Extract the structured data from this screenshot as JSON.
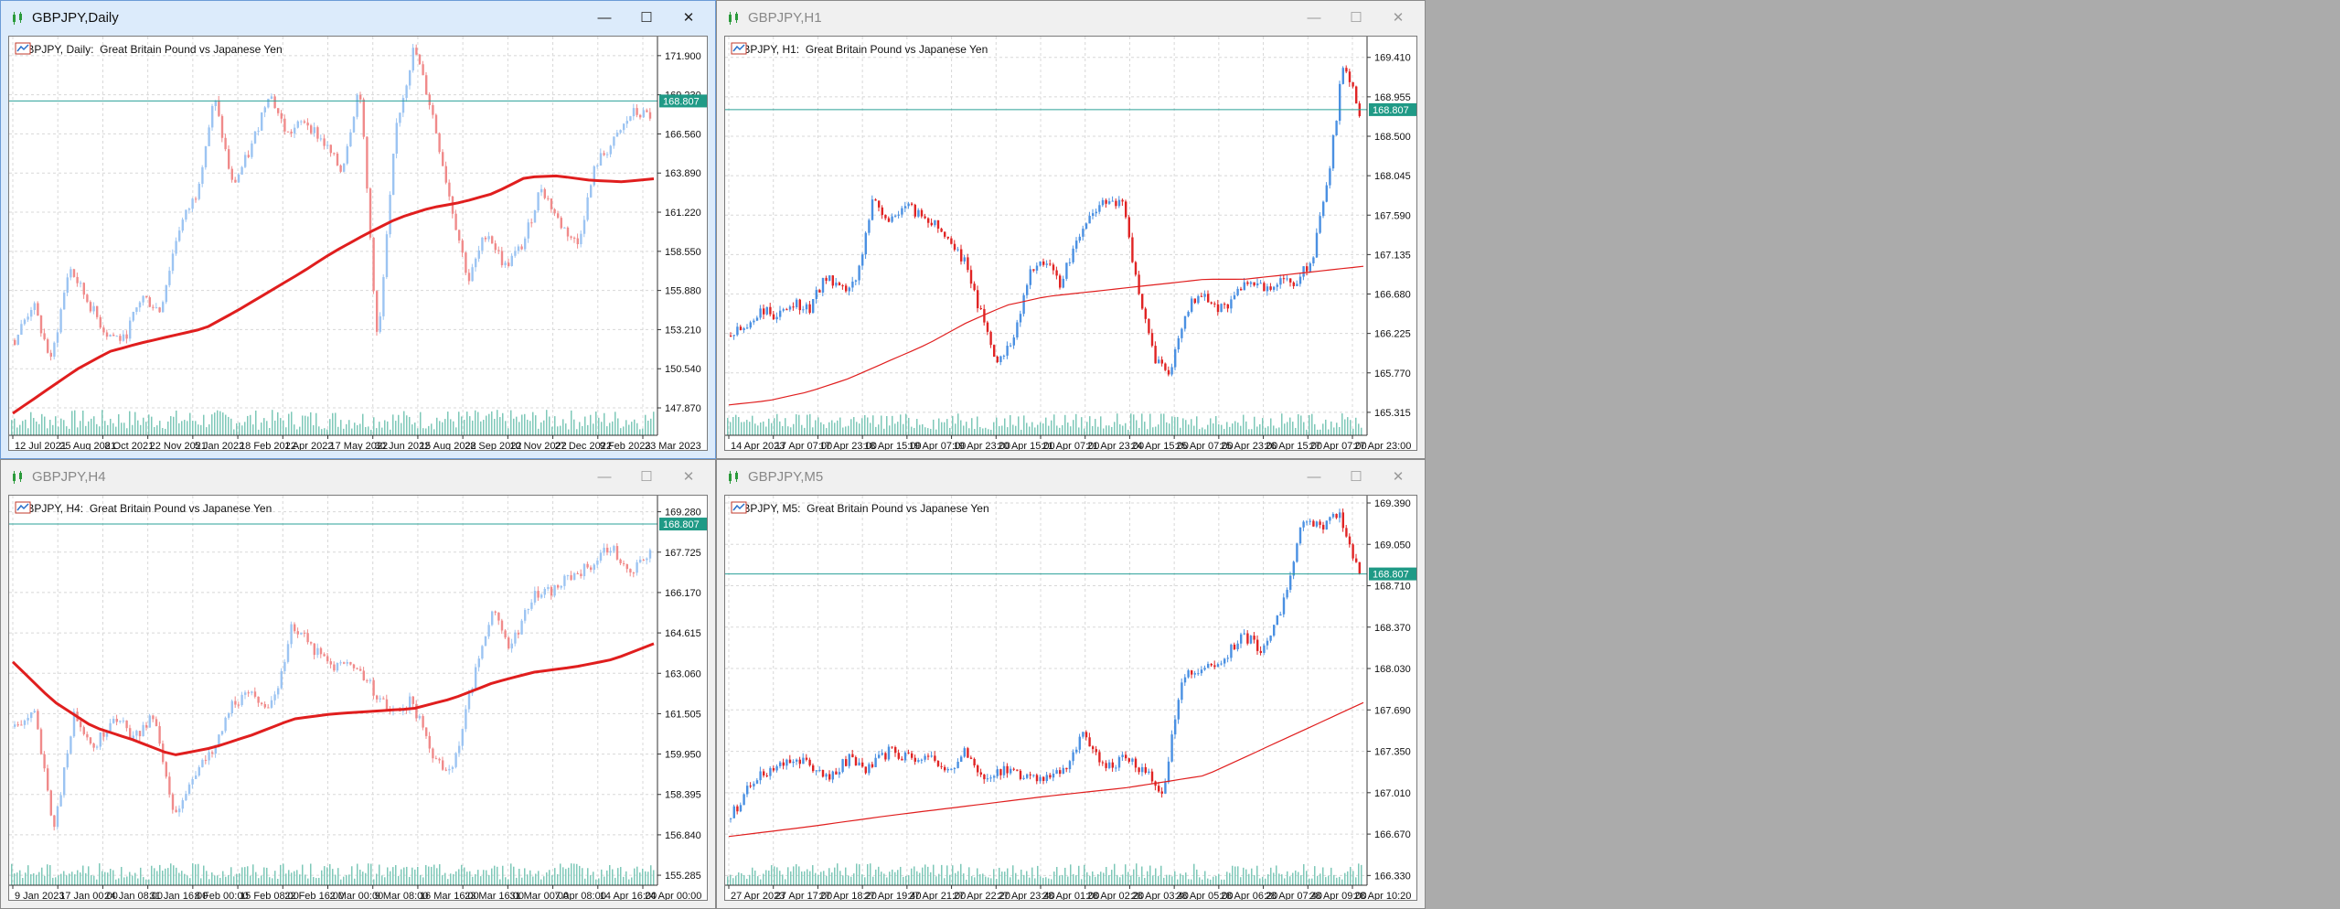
{
  "windows": [
    {
      "title": "GBPJPY,Daily",
      "active": true,
      "chart_label": "GBPJPY, Daily:  Great Britain Pound vs Japanese Yen",
      "price_badge": "168.807",
      "y_ticks": [
        "171.900",
        "169.230",
        "166.560",
        "163.890",
        "161.220",
        "158.550",
        "155.880",
        "153.210",
        "150.540",
        "147.870"
      ],
      "x_ticks": [
        "12 Jul 2021",
        "25 Aug 2021",
        "8 Oct 2021",
        "22 Nov 2021",
        "5 Jan 2022",
        "18 Feb 2022",
        "1 Apr 2022",
        "17 May 2022",
        "30 Jun 2022",
        "15 Aug 2022",
        "28 Sep 2022",
        "10 Nov 2022",
        "27 Dec 2022",
        "9 Feb 2023",
        "23 Mar 2023"
      ]
    },
    {
      "title": "GBPJPY,H1",
      "active": false,
      "chart_label": "GBPJPY, H1:  Great Britain Pound vs Japanese Yen",
      "price_badge": "168.807",
      "y_ticks": [
        "169.410",
        "168.955",
        "168.500",
        "168.045",
        "167.590",
        "167.135",
        "166.680",
        "166.225",
        "165.770",
        "165.315"
      ],
      "x_ticks": [
        "14 Apr 2023",
        "17 Apr 07:00",
        "17 Apr 23:00",
        "18 Apr 15:00",
        "19 Apr 07:00",
        "19 Apr 23:00",
        "20 Apr 15:00",
        "21 Apr 07:00",
        "21 Apr 23:00",
        "24 Apr 15:00",
        "25 Apr 07:00",
        "25 Apr 23:00",
        "26 Apr 15:00",
        "27 Apr 07:00",
        "27 Apr 23:00"
      ]
    },
    {
      "title": "GBPJPY,H4",
      "active": false,
      "chart_label": "GBPJPY, H4:  Great Britain Pound vs Japanese Yen",
      "price_badge": "168.807",
      "y_ticks": [
        "169.280",
        "167.725",
        "166.170",
        "164.615",
        "163.060",
        "161.505",
        "159.950",
        "158.395",
        "156.840",
        "155.285"
      ],
      "x_ticks": [
        "9 Jan 2023",
        "17 Jan 00:00",
        "24 Jan 08:00",
        "31 Jan 16:00",
        "8 Feb 00:00",
        "15 Feb 08:00",
        "22 Feb 16:00",
        "2 Mar 00:00",
        "9 Mar 08:00",
        "16 Mar 16:00",
        "23 Mar 16:00",
        "31 Mar 00:00",
        "7 Apr 08:00",
        "14 Apr 16:00",
        "24 Apr 00:00"
      ]
    },
    {
      "title": "GBPJPY,M5",
      "active": false,
      "chart_label": "GBPJPY, M5:  Great Britain Pound vs Japanese Yen",
      "price_badge": "168.807",
      "y_ticks": [
        "169.390",
        "169.050",
        "168.710",
        "168.370",
        "168.030",
        "167.690",
        "167.350",
        "167.010",
        "166.670",
        "166.330"
      ],
      "x_ticks": [
        "27 Apr 2023",
        "27 Apr 17:00",
        "27 Apr 18:20",
        "27 Apr 19:40",
        "27 Apr 21:00",
        "27 Apr 22:20",
        "27 Apr 23:40",
        "28 Apr 01:00",
        "28 Apr 02:20",
        "28 Apr 03:40",
        "28 Apr 05:00",
        "28 Apr 06:20",
        "28 Apr 07:40",
        "28 Apr 09:00",
        "28 Apr 10:20"
      ]
    }
  ],
  "window_buttons": {
    "minimize": "—",
    "maximize": "☐",
    "close": "✕"
  },
  "colors": {
    "bull": "#4a90e2",
    "bull_light": "#9cc4f2",
    "bear": "#e02424",
    "bear_light": "#f08a8a",
    "ma": "#e01e1e",
    "volume": "#7ec8b8",
    "price_line": "#2aa198",
    "badge": "#1f9a86",
    "grid": "#d8d8d8"
  },
  "chart_data": [
    {
      "type": "line",
      "title": "GBPJPY, Daily:  Great Britain Pound vs Japanese Yen",
      "series": [
        {
          "values": [
            152.5,
            155.0,
            151.0,
            157.5,
            155.2,
            153.0,
            152.5,
            155.5,
            154.5,
            160.0,
            162.5,
            169.0,
            163.0,
            165.5,
            169.5,
            166.5,
            167.5,
            166.0,
            164.0,
            170.0,
            152.0,
            167.0,
            172.5,
            168.0,
            162.0,
            156.5,
            160.0,
            157.5,
            159.0,
            163.0,
            160.5,
            159.0,
            164.5,
            166.0,
            168.0,
            167.8
          ]
        },
        {
          "name": "MA",
          "values": [
            147.5,
            149.0,
            150.5,
            151.7,
            152.3,
            152.8,
            153.3,
            154.5,
            155.8,
            157.1,
            158.5,
            159.7,
            160.8,
            161.5,
            161.9,
            162.5,
            163.6,
            163.7,
            163.4,
            163.3,
            163.5
          ]
        }
      ],
      "ylim": [
        146.0,
        173.2
      ],
      "price_line": 168.807
    },
    {
      "type": "line",
      "title": "GBPJPY, H1:  Great Britain Pound vs Japanese Yen",
      "series": [
        {
          "values": [
            166.2,
            166.3,
            166.5,
            166.4,
            166.6,
            166.5,
            166.9,
            166.7,
            166.8,
            167.8,
            167.5,
            167.7,
            167.6,
            167.5,
            167.3,
            167.0,
            166.4,
            165.9,
            166.2,
            166.9,
            167.1,
            166.8,
            167.3,
            167.6,
            167.8,
            167.7,
            166.6,
            165.9,
            165.8,
            166.5,
            166.7,
            166.5,
            166.6,
            166.9,
            166.7,
            166.9,
            166.8,
            167.1,
            168.0,
            169.4,
            168.8
          ]
        },
        {
          "name": "MA",
          "values": [
            165.4,
            165.45,
            165.55,
            165.7,
            165.9,
            166.1,
            166.35,
            166.55,
            166.65,
            166.7,
            166.75,
            166.8,
            166.85,
            166.85,
            166.9,
            166.95,
            167.0
          ]
        }
      ],
      "ylim": [
        165.05,
        169.65
      ],
      "price_line": 168.807
    },
    {
      "type": "line",
      "title": "GBPJPY, H4:  Great Britain Pound vs Japanese Yen",
      "series": [
        {
          "values": [
            161.0,
            161.5,
            157.0,
            161.6,
            160.2,
            161.5,
            160.5,
            161.4,
            157.5,
            159.2,
            160.0,
            162.0,
            162.2,
            161.8,
            165.0,
            164.0,
            163.3,
            163.5,
            162.5,
            161.5,
            162.0,
            160.0,
            159.2,
            162.5,
            165.5,
            164.0,
            166.0,
            166.2,
            166.8,
            167.2,
            168.0,
            166.8,
            167.8
          ]
        },
        {
          "name": "MA",
          "values": [
            163.5,
            162.0,
            161.0,
            160.5,
            159.9,
            160.2,
            160.7,
            161.3,
            161.5,
            161.6,
            161.7,
            162.1,
            162.7,
            163.1,
            163.3,
            163.6,
            164.2
          ]
        }
      ],
      "ylim": [
        154.9,
        169.9
      ],
      "price_line": 168.807
    },
    {
      "type": "line",
      "title": "GBPJPY, M5:  Great Britain Pound vs Japanese Yen",
      "series": [
        {
          "values": [
            166.8,
            167.1,
            167.2,
            167.3,
            167.25,
            167.1,
            167.3,
            167.2,
            167.35,
            167.3,
            167.3,
            167.2,
            167.35,
            167.1,
            167.2,
            167.15,
            167.1,
            167.2,
            167.5,
            167.2,
            167.3,
            167.2,
            167.0,
            168.0,
            168.0,
            168.1,
            168.3,
            168.2,
            168.5,
            169.2,
            169.2,
            169.3,
            168.8
          ]
        },
        {
          "name": "MA",
          "values": [
            166.65,
            166.73,
            166.82,
            166.9,
            166.98,
            167.05,
            167.15,
            167.45,
            167.75
          ]
        }
      ],
      "ylim": [
        166.25,
        169.45
      ],
      "price_line": 168.807
    }
  ]
}
